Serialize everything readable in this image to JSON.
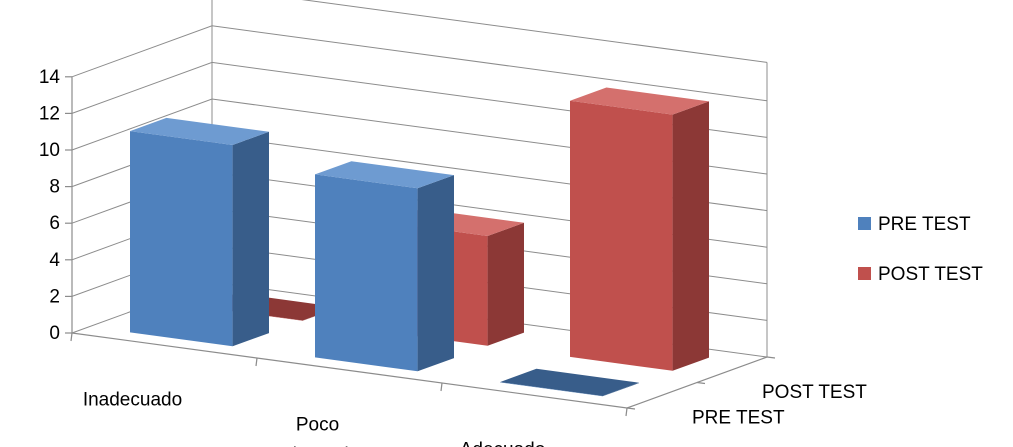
{
  "chart_data": {
    "type": "bar",
    "subtype": "3d-clustered-depth",
    "title": "",
    "xlabel": "",
    "ylabel": "",
    "categories": [
      "Inadecuado",
      "Poco adecuado",
      "Adecuado"
    ],
    "depth_labels": [
      "PRE TEST",
      "POST TEST"
    ],
    "yticks": [
      0,
      2,
      4,
      6,
      8,
      10,
      12,
      14
    ],
    "ylim": [
      0,
      14
    ],
    "grid": true,
    "legend_position": "right",
    "series": [
      {
        "name": "PRE TEST",
        "values": [
          11,
          10,
          0
        ],
        "color": "#4f81bd",
        "side": "#385d8a",
        "top": "#6e9bd1"
      },
      {
        "name": "POST TEST",
        "values": [
          0,
          6,
          14
        ],
        "color": "#c0504d",
        "side": "#8c3836",
        "top": "#d4706d"
      }
    ]
  }
}
